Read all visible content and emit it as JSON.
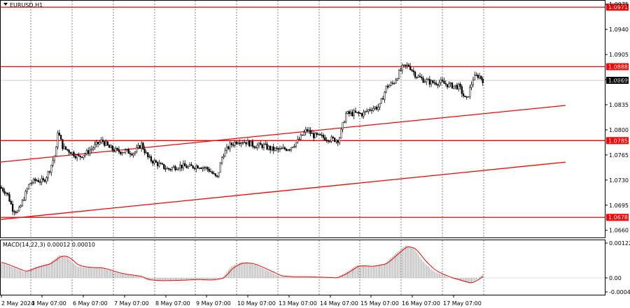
{
  "window": {
    "symbol_label": "EURUSD,H1",
    "menu_icon": "triangle-down-icon"
  },
  "chart_data": [
    {
      "type": "candlestick",
      "title": "EURUSD,H1",
      "ylim": [
        1.065,
        1.098
      ],
      "y_ticks": [
        "1.0975",
        "1.0940",
        "1.0905",
        "1.0870",
        "1.0835",
        "1.0800",
        "1.0765",
        "1.0730",
        "1.0695",
        "1.0660"
      ],
      "x_ticks": [
        "2 May 2024",
        "3 May 07:00",
        "6 May 07:00",
        "7 May 07:00",
        "8 May 07:00",
        "9 May 07:00",
        "10 May 07:00",
        "13 May 07:00",
        "14 May 07:00",
        "15 May 07:00",
        "16 May 07:00",
        "17 May 07:00"
      ],
      "current_price": "1.0869",
      "grid": true,
      "horizontal_levels": [
        {
          "value": 1.0971,
          "label": "1.0971"
        },
        {
          "value": 1.0888,
          "label": "1.0888"
        },
        {
          "value": 1.0785,
          "label": "1.0785"
        },
        {
          "value": 1.0678,
          "label": "1.0678"
        }
      ],
      "trend_lines": [
        {
          "from": [
            0,
            1.0755
          ],
          "to": [
            808,
            1.0834
          ]
        },
        {
          "from": [
            0,
            1.0675
          ],
          "to": [
            808,
            1.0755
          ]
        }
      ],
      "price_path": [
        [
          0,
          1.072
        ],
        [
          10,
          1.0712
        ],
        [
          18,
          1.069
        ],
        [
          26,
          1.0685
        ],
        [
          34,
          1.0705
        ],
        [
          42,
          1.0725
        ],
        [
          52,
          1.073
        ],
        [
          62,
          1.0728
        ],
        [
          70,
          1.0742
        ],
        [
          80,
          1.077
        ],
        [
          82,
          1.08
        ],
        [
          90,
          1.0775
        ],
        [
          100,
          1.077
        ],
        [
          112,
          1.0762
        ],
        [
          124,
          1.0768
        ],
        [
          136,
          1.0778
        ],
        [
          146,
          1.0785
        ],
        [
          156,
          1.0775
        ],
        [
          168,
          1.077
        ],
        [
          180,
          1.077
        ],
        [
          192,
          1.0768
        ],
        [
          202,
          1.078
        ],
        [
          212,
          1.076
        ],
        [
          226,
          1.0752
        ],
        [
          240,
          1.0745
        ],
        [
          256,
          1.075
        ],
        [
          270,
          1.0748
        ],
        [
          284,
          1.075
        ],
        [
          298,
          1.0745
        ],
        [
          310,
          1.0732
        ],
        [
          318,
          1.0765
        ],
        [
          328,
          1.0778
        ],
        [
          340,
          1.0785
        ],
        [
          352,
          1.0783
        ],
        [
          364,
          1.0778
        ],
        [
          376,
          1.0778
        ],
        [
          388,
          1.0773
        ],
        [
          400,
          1.0772
        ],
        [
          414,
          1.0775
        ],
        [
          426,
          1.0785
        ],
        [
          438,
          1.08
        ],
        [
          448,
          1.0792
        ],
        [
          460,
          1.079
        ],
        [
          472,
          1.0787
        ],
        [
          484,
          1.0786
        ],
        [
          494,
          1.0822
        ],
        [
          506,
          1.0823
        ],
        [
          518,
          1.0822
        ],
        [
          530,
          1.083
        ],
        [
          542,
          1.0832
        ],
        [
          552,
          1.086
        ],
        [
          562,
          1.0865
        ],
        [
          574,
          1.0886
        ],
        [
          584,
          1.089
        ],
        [
          594,
          1.0876
        ],
        [
          604,
          1.087
        ],
        [
          616,
          1.0866
        ],
        [
          630,
          1.0866
        ],
        [
          642,
          1.0862
        ],
        [
          656,
          1.086
        ],
        [
          666,
          1.084
        ],
        [
          676,
          1.0872
        ],
        [
          684,
          1.0876
        ],
        [
          690,
          1.0869
        ]
      ]
    },
    {
      "type": "bar",
      "title": "MACD(14,22,3) 0.00012 0.00010",
      "ylim": [
        -0.00049,
        0.00122
      ],
      "y_ticks": [
        "0.00122",
        "0.00",
        "-0.00049"
      ],
      "series": [
        {
          "name": "MACD",
          "style": "histogram"
        },
        {
          "name": "Signal",
          "style": "line"
        }
      ],
      "macd_path": [
        [
          0,
          0.00055
        ],
        [
          20,
          0.00035
        ],
        [
          35,
          0.0002
        ],
        [
          50,
          0.00038
        ],
        [
          70,
          0.0005
        ],
        [
          85,
          0.0008
        ],
        [
          95,
          0.00075
        ],
        [
          110,
          0.0004
        ],
        [
          130,
          0.00036
        ],
        [
          145,
          0.00035
        ],
        [
          170,
          0.00015
        ],
        [
          200,
          5e-05
        ],
        [
          210,
          -8e-05
        ],
        [
          230,
          -0.0001
        ],
        [
          260,
          -8e-05
        ],
        [
          280,
          -5e-05
        ],
        [
          300,
          -8e-05
        ],
        [
          318,
          0.0
        ],
        [
          330,
          0.0004
        ],
        [
          345,
          0.00055
        ],
        [
          360,
          0.0005
        ],
        [
          380,
          0.00028
        ],
        [
          400,
          5e-05
        ],
        [
          420,
          4e-05
        ],
        [
          440,
          4e-05
        ],
        [
          460,
          2e-05
        ],
        [
          480,
          0.0
        ],
        [
          495,
          0.0002
        ],
        [
          510,
          0.00045
        ],
        [
          530,
          0.0004
        ],
        [
          550,
          0.0005
        ],
        [
          565,
          0.00085
        ],
        [
          580,
          0.00115
        ],
        [
          592,
          0.001
        ],
        [
          605,
          0.00055
        ],
        [
          620,
          0.00022
        ],
        [
          640,
          2e-05
        ],
        [
          660,
          -0.00012
        ],
        [
          672,
          -0.0002
        ],
        [
          682,
          -2e-05
        ],
        [
          690,
          0.00012
        ]
      ]
    }
  ],
  "colors": {
    "background": "#ffffff",
    "level_line": "#ff0000",
    "label_bg": "#ff0000",
    "label_text": "#ffffff",
    "candle": "#000000",
    "grid": "#000000",
    "histogram": "#a0a0a0",
    "signal_line": "#ff0000",
    "current_price_bg": "#000000",
    "current_price_text": "#ffffff"
  }
}
